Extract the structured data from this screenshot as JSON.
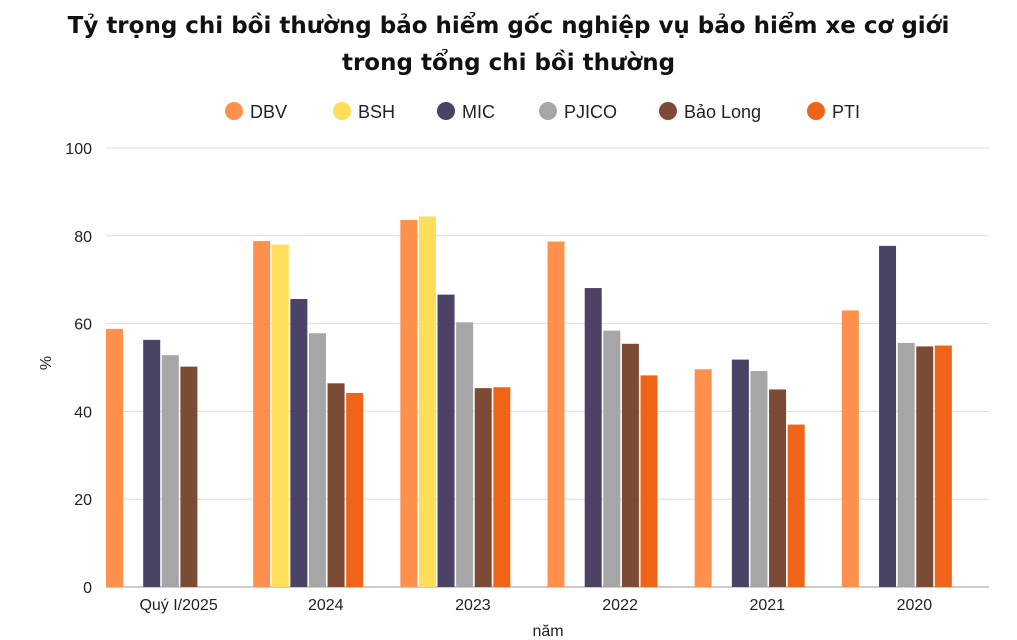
{
  "chart_data": {
    "type": "bar",
    "title_line1": "Tỷ trọng chi bồi thường bảo hiểm gốc nghiệp vụ bảo hiểm xe cơ giới",
    "title_line2": "trong tổng chi bồi thường",
    "xlabel": "năm",
    "ylabel": "%",
    "ylim": [
      0,
      100
    ],
    "yticks": [
      0,
      20,
      40,
      60,
      80,
      100
    ],
    "grid": true,
    "legend_position": "top",
    "categories": [
      "Quý I/2025",
      "2024",
      "2023",
      "2022",
      "2021",
      "2020"
    ],
    "series": [
      {
        "name": "DBV",
        "color": "#FF914D",
        "values": [
          58.8,
          78.8,
          83.6,
          78.7,
          49.6,
          63.0
        ]
      },
      {
        "name": "BSH",
        "color": "#FFDE59",
        "values": [
          null,
          78.0,
          84.4,
          null,
          null,
          null
        ]
      },
      {
        "name": "MIC",
        "color": "#4B4265",
        "values": [
          56.3,
          65.6,
          66.6,
          68.1,
          51.8,
          77.7
        ]
      },
      {
        "name": "PJICO",
        "color": "#A6A6A6",
        "values": [
          52.8,
          57.8,
          60.3,
          58.4,
          49.2,
          55.6
        ]
      },
      {
        "name": "Bảo Long",
        "color": "#7B4B35",
        "values": [
          50.2,
          46.4,
          45.3,
          55.4,
          45.0,
          54.8
        ]
      },
      {
        "name": "PTI",
        "color": "#F06418",
        "values": [
          null,
          44.2,
          45.5,
          48.2,
          37.0,
          55.0
        ]
      }
    ]
  }
}
